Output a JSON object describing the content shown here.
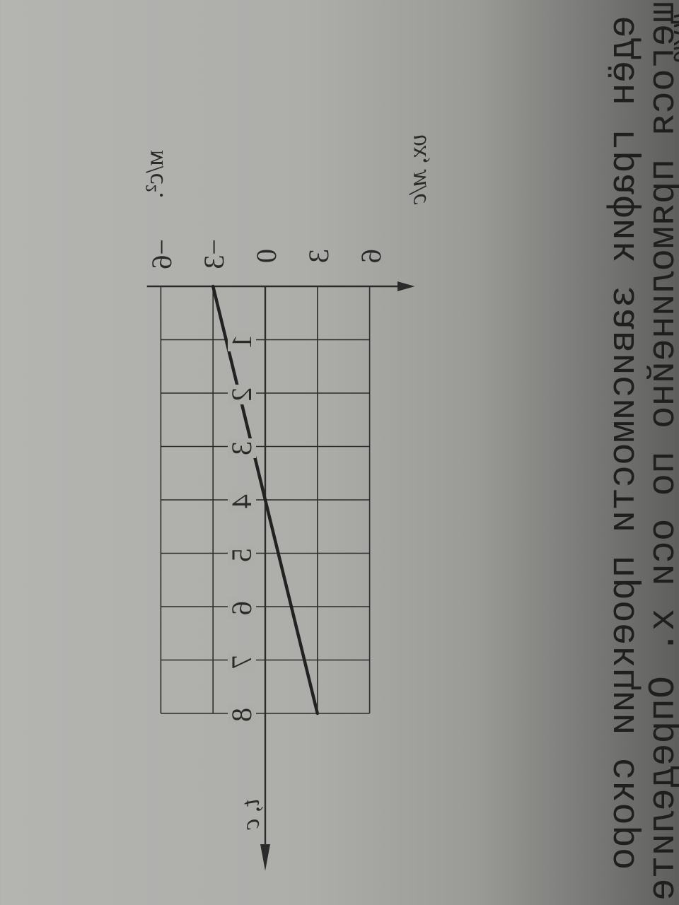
{
  "text": {
    "fragment_top": "…ную.",
    "line1": "едён график зависимости проекции скоро",
    "line2": "щегося прямолинейно по оси x. Определите",
    "unit_bottom": "м/с².",
    "ink_color": "#2a2a2a",
    "paper_color": "#adadaa"
  },
  "chart_data": {
    "type": "line",
    "xlabel": "t, с",
    "ylabel": "υx, м/с",
    "xlim": [
      0,
      8
    ],
    "ylim": [
      -6,
      6
    ],
    "x_ticks": [
      "1",
      "2",
      "3",
      "4",
      "5",
      "6",
      "7",
      "8"
    ],
    "y_ticks": [
      "6",
      "3",
      "0",
      "−3",
      "−6"
    ],
    "y_tick_values": [
      6,
      3,
      0,
      -3,
      -6
    ],
    "grid": true,
    "x": [
      0,
      4,
      8
    ],
    "y": [
      -3,
      0,
      3
    ]
  }
}
